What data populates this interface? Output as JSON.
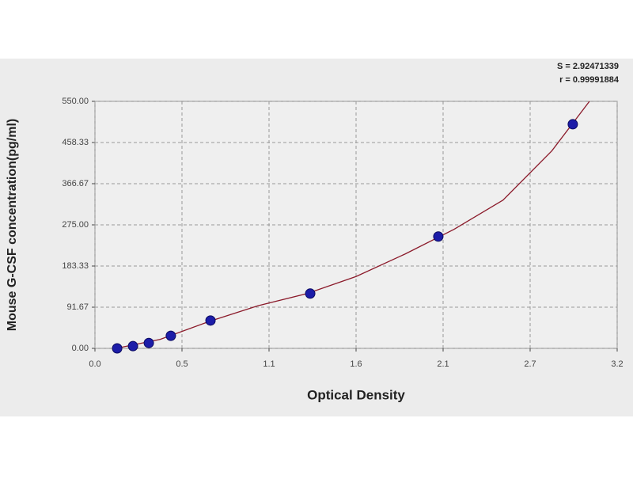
{
  "chart_data": {
    "type": "scatter",
    "y_label": "Mouse G-CSF concentration(pg/ml)",
    "x_label": "Optical Density",
    "annotations": [
      "S = 2.92471339",
      "r = 0.99991884"
    ],
    "xlim": [
      0,
      3.2
    ],
    "ylim": [
      0,
      550
    ],
    "xticks": [
      {
        "value": 0,
        "label": "0.0"
      },
      {
        "value": 0.5333,
        "label": "0.5"
      },
      {
        "value": 1.0667,
        "label": "1.1"
      },
      {
        "value": 1.6,
        "label": "1.6"
      },
      {
        "value": 2.1333,
        "label": "2.1"
      },
      {
        "value": 2.6667,
        "label": "2.7"
      },
      {
        "value": 3.2,
        "label": "3.2"
      }
    ],
    "yticks": [
      {
        "value": 0,
        "label": "0.00"
      },
      {
        "value": 91.67,
        "label": "91.67"
      },
      {
        "value": 183.33,
        "label": "183.33"
      },
      {
        "value": 275,
        "label": "275.00"
      },
      {
        "value": 366.67,
        "label": "366.67"
      },
      {
        "value": 458.33,
        "label": "458.33"
      },
      {
        "value": 550,
        "label": "550.00"
      }
    ],
    "grid": true,
    "series": [
      {
        "kind": "points",
        "color": "#1c1ca8",
        "x": [
          0.136,
          0.233,
          0.33,
          0.465,
          0.708,
          1.319,
          2.104,
          2.928
        ],
        "values": [
          0,
          5,
          12,
          28,
          62,
          122,
          249,
          499
        ]
      },
      {
        "kind": "curve",
        "color": "#8b1a2a",
        "x": [
          0.13,
          0.4,
          0.7,
          1.0,
          1.3,
          1.6,
          1.9,
          2.2,
          2.5,
          2.8,
          3.03
        ],
        "values": [
          0,
          20,
          60,
          95,
          122,
          160,
          210,
          265,
          330,
          440,
          550
        ]
      }
    ]
  }
}
